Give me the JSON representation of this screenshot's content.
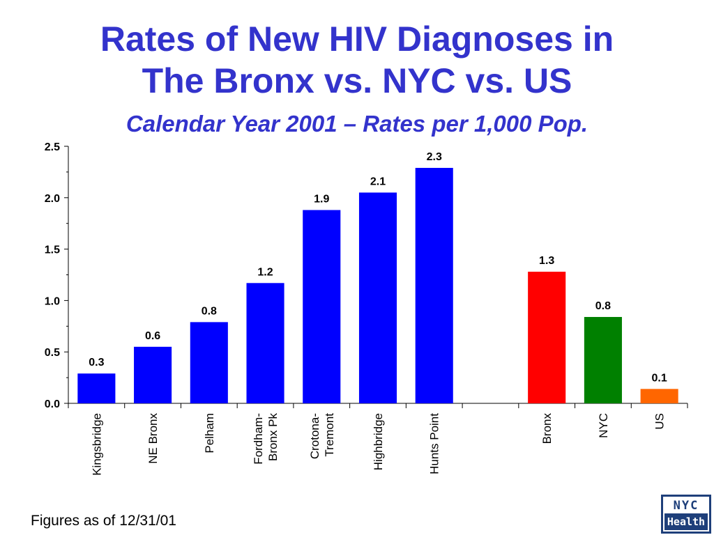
{
  "chart_data": {
    "type": "bar",
    "title": "Rates of New HIV Diagnoses in The Bronx vs. NYC vs. US",
    "title_lines": [
      "Rates of New HIV Diagnoses in",
      "The Bronx vs. NYC vs. US"
    ],
    "subtitle": "Calendar Year 2001 – Rates per 1,000 Pop.",
    "xlabel": "",
    "ylabel": "",
    "ylim": [
      0,
      2.5
    ],
    "yticks": [
      "0.0",
      "0.5",
      "1.0",
      "1.5",
      "2.0",
      "2.5"
    ],
    "grid": false,
    "legend": "none",
    "bars": [
      {
        "category": "Kingsbridge",
        "value": 0.29,
        "label": "0.3",
        "color": "#0000ff"
      },
      {
        "category": "NE Bronx",
        "value": 0.55,
        "label": "0.6",
        "color": "#0000ff"
      },
      {
        "category": "Pelham",
        "value": 0.79,
        "label": "0.8",
        "color": "#0000ff"
      },
      {
        "category": "Fordham-\nBronx Pk",
        "value": 1.17,
        "label": "1.2",
        "color": "#0000ff"
      },
      {
        "category": "Crotona-\nTremont",
        "value": 1.88,
        "label": "1.9",
        "color": "#0000ff"
      },
      {
        "category": "Highbridge",
        "value": 2.05,
        "label": "2.1",
        "color": "#0000ff"
      },
      {
        "category": "Hunts Point",
        "value": 2.29,
        "label": "2.3",
        "color": "#0000ff"
      },
      {
        "category": "",
        "value": null,
        "label": "",
        "color": ""
      },
      {
        "category": "Bronx",
        "value": 1.28,
        "label": "1.3",
        "color": "#ff0000"
      },
      {
        "category": "NYC",
        "value": 0.84,
        "label": "0.8",
        "color": "#008000"
      },
      {
        "category": "US",
        "value": 0.14,
        "label": "0.1",
        "color": "#ff6600"
      }
    ]
  },
  "footnote": "Figures as of 12/31/01",
  "logo": {
    "top": "NYC",
    "bottom": "Health",
    "color": "#1e3f7a"
  }
}
